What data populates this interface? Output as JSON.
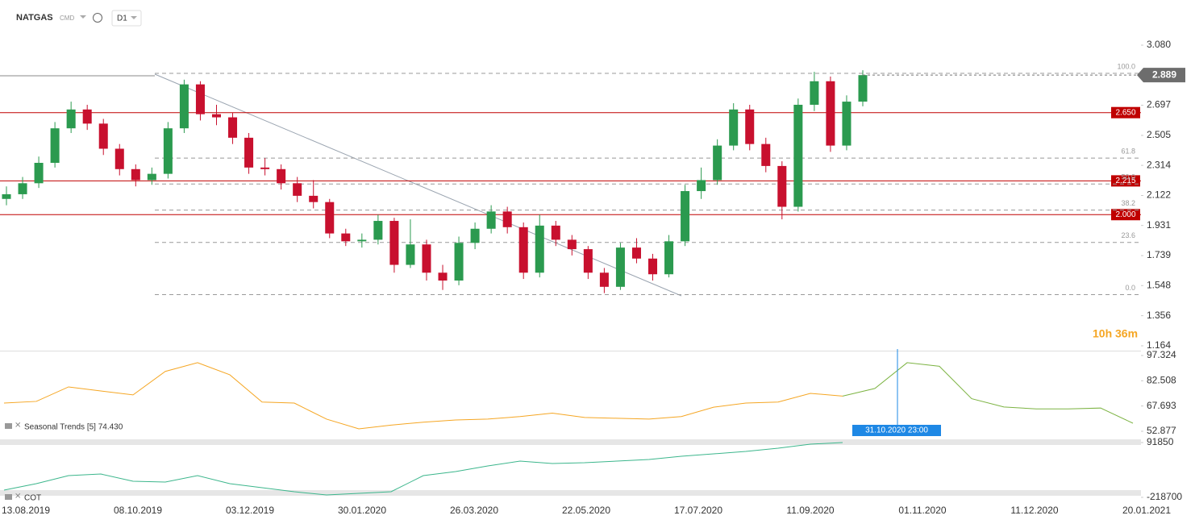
{
  "header": {
    "symbol": "NATGAS",
    "market": "CMD",
    "interval": "D1",
    "countdown": "10h 36m"
  },
  "time_axis": {
    "labels": [
      "13.08.2019",
      "08.10.2019",
      "03.12.2019",
      "30.01.2020",
      "26.03.2020",
      "22.05.2020",
      "17.07.2020",
      "11.09.2020",
      "01.11.2020",
      "11.12.2020",
      "20.01.2021"
    ]
  },
  "chart_data": [
    {
      "type": "candlestick",
      "up_color": "#2b9a4f",
      "down_color": "#c8102e",
      "open": [
        2.1,
        2.13,
        2.2,
        2.33,
        2.55,
        2.67,
        2.58,
        2.42,
        2.29,
        2.22,
        2.26,
        2.55,
        2.83,
        2.64,
        2.62,
        2.49,
        2.3,
        2.29,
        2.2,
        2.12,
        2.08,
        1.88,
        1.83,
        1.84,
        1.96,
        1.68,
        1.81,
        1.63,
        1.58,
        1.82,
        1.91,
        2.02,
        1.92,
        1.63,
        1.93,
        1.84,
        1.78,
        1.63,
        1.54,
        1.79,
        1.72,
        1.62,
        1.83,
        2.15,
        2.22,
        2.44,
        2.67,
        2.45,
        2.31,
        2.05,
        2.7,
        2.85,
        2.44,
        2.72
      ],
      "high": [
        2.18,
        2.24,
        2.37,
        2.59,
        2.72,
        2.7,
        2.61,
        2.45,
        2.32,
        2.3,
        2.59,
        2.86,
        2.85,
        2.7,
        2.65,
        2.52,
        2.36,
        2.32,
        2.24,
        2.22,
        2.1,
        1.91,
        1.88,
        2.0,
        1.98,
        1.97,
        1.84,
        1.68,
        1.86,
        1.95,
        2.06,
        2.05,
        1.95,
        2.0,
        1.96,
        1.87,
        1.8,
        1.66,
        1.82,
        1.85,
        1.75,
        1.87,
        2.19,
        2.3,
        2.48,
        2.71,
        2.7,
        2.49,
        2.34,
        2.74,
        2.91,
        2.88,
        2.76,
        2.92
      ],
      "low": [
        2.06,
        2.1,
        2.17,
        2.3,
        2.52,
        2.54,
        2.38,
        2.25,
        2.18,
        2.19,
        2.23,
        2.52,
        2.6,
        2.57,
        2.45,
        2.26,
        2.25,
        2.16,
        2.08,
        2.04,
        1.85,
        1.8,
        1.79,
        1.81,
        1.63,
        1.66,
        1.58,
        1.52,
        1.55,
        1.78,
        1.88,
        1.88,
        1.59,
        1.6,
        1.8,
        1.74,
        1.59,
        1.5,
        1.52,
        1.69,
        1.58,
        1.6,
        1.8,
        2.1,
        2.19,
        2.41,
        2.41,
        2.27,
        1.97,
        2.02,
        2.66,
        2.4,
        2.41,
        2.69
      ],
      "close": [
        2.13,
        2.2,
        2.33,
        2.55,
        2.67,
        2.58,
        2.42,
        2.29,
        2.22,
        2.26,
        2.55,
        2.83,
        2.64,
        2.62,
        2.49,
        2.3,
        2.29,
        2.2,
        2.12,
        2.08,
        1.88,
        1.83,
        1.84,
        1.96,
        1.68,
        1.81,
        1.63,
        1.58,
        1.82,
        1.91,
        2.02,
        1.92,
        1.63,
        1.93,
        1.84,
        1.78,
        1.63,
        1.54,
        1.79,
        1.72,
        1.62,
        1.83,
        2.15,
        2.22,
        2.44,
        2.67,
        2.45,
        2.31,
        2.05,
        2.7,
        2.85,
        2.44,
        2.72,
        2.889
      ],
      "ylim": [
        1.164,
        3.08
      ],
      "yticks": [
        {
          "value": 3.08,
          "label": "3.080"
        },
        {
          "value": 2.697,
          "label": "2.697"
        },
        {
          "value": 2.505,
          "label": "2.505"
        },
        {
          "value": 2.314,
          "label": "2.314"
        },
        {
          "value": 2.122,
          "label": "2.122"
        },
        {
          "value": 1.931,
          "label": "1.931"
        },
        {
          "value": 1.739,
          "label": "1.739"
        },
        {
          "value": 1.548,
          "label": "1.548"
        },
        {
          "value": 1.356,
          "label": "1.356"
        },
        {
          "value": 1.164,
          "label": "1.164"
        }
      ],
      "levels": [
        {
          "value": 2.65,
          "label": "2.650"
        },
        {
          "value": 2.215,
          "label": "2.215"
        },
        {
          "value": 2.0,
          "label": "2.000"
        }
      ],
      "level_color": "#c00000",
      "fib_levels": [
        {
          "value": 2.9,
          "label": "100.0"
        },
        {
          "value": 2.36,
          "label": "61.8"
        },
        {
          "value": 2.195,
          "label": "50.0"
        },
        {
          "value": 2.029,
          "label": "38.2"
        },
        {
          "value": 1.823,
          "label": "23.6"
        },
        {
          "value": 1.49,
          "label": "0.0"
        }
      ],
      "last_price": {
        "value": 2.889,
        "label": "2.889"
      }
    },
    {
      "type": "line",
      "title": "Seasonal  Trends  [5]  74.430",
      "series": [
        {
          "color": "#f5a623",
          "values": [
            69.4,
            70.4,
            78.9,
            76.5,
            74.2,
            88.0,
            93.1,
            86.0,
            70.0,
            69.4,
            60.0,
            54.3,
            56.5,
            58.2,
            59.5,
            60.0,
            61.5,
            63.5,
            61.0,
            60.5,
            60.0,
            61.5,
            67.0,
            69.4,
            70.0,
            75.1,
            73.5,
            null,
            null,
            null,
            null,
            null,
            null,
            null,
            null,
            null
          ]
        },
        {
          "color": "#7cb342",
          "values": [
            null,
            null,
            null,
            null,
            null,
            null,
            null,
            null,
            null,
            null,
            null,
            null,
            null,
            null,
            null,
            null,
            null,
            null,
            null,
            null,
            null,
            null,
            null,
            null,
            null,
            null,
            73.5,
            78.0,
            93.1,
            91.0,
            72.0,
            67.1,
            66.0,
            66.0,
            66.5,
            57.6
          ]
        }
      ],
      "ylim": [
        52.877,
        97.324
      ],
      "yticks": [
        {
          "value": 97.324,
          "label": "97.324"
        },
        {
          "value": 82.508,
          "label": "82.508"
        },
        {
          "value": 67.693,
          "label": "67.693"
        },
        {
          "value": 52.877,
          "label": "52.877"
        }
      ],
      "cursor_label": "31.10.2020 23:00"
    },
    {
      "type": "line",
      "title": "COT",
      "series": [
        {
          "color": "#3cb68c",
          "values": [
            -177600,
            -141100,
            -95400,
            -86300,
            -127400,
            -131900,
            -95400,
            -141100,
            -163900,
            -186700,
            -205000,
            -195900,
            -186700,
            -95400,
            -72600,
            -40600,
            -13200,
            -26900,
            -22300,
            -13200,
            -4100,
            14200,
            27900,
            41600,
            59900,
            82700,
            91850
          ]
        }
      ],
      "ylim": [
        -218700,
        91850
      ],
      "yticks": [
        91850,
        -218700
      ]
    }
  ]
}
